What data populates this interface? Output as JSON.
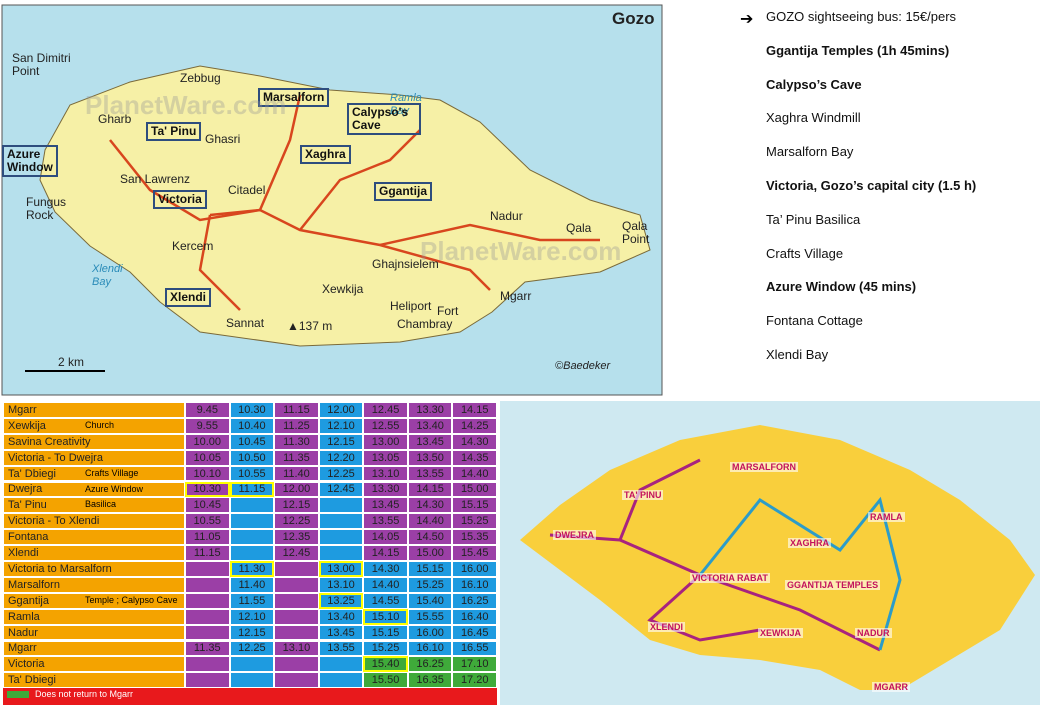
{
  "gozo_map": {
    "watermark": "PlanetWare.com",
    "labels": [
      {
        "text": "Gozo",
        "style": "title"
      },
      {
        "text": "San Dimitri Point"
      },
      {
        "text": "Zebbug"
      },
      {
        "text": "Marsalforn",
        "boxed": true
      },
      {
        "text": "Ramla Bay",
        "style": "water"
      },
      {
        "text": "Calypso's Cave",
        "boxed": true
      },
      {
        "text": "Gharb"
      },
      {
        "text": "Ta' Pinu",
        "boxed": true
      },
      {
        "text": "Ghasri"
      },
      {
        "text": "Azure Window",
        "boxed": true
      },
      {
        "text": "Xaghra",
        "boxed": true
      },
      {
        "text": "San Lawrenz"
      },
      {
        "text": "Citadel"
      },
      {
        "text": "Ggantija",
        "boxed": true
      },
      {
        "text": "Fungus Rock"
      },
      {
        "text": "Victoria",
        "boxed": true
      },
      {
        "text": "Nadur"
      },
      {
        "text": "Qala"
      },
      {
        "text": "Qala Point"
      },
      {
        "text": "Kercem"
      },
      {
        "text": "Ghajnsielem"
      },
      {
        "text": "Xlendi Bay",
        "style": "water"
      },
      {
        "text": "Xlendi",
        "boxed": true
      },
      {
        "text": "Xewkija"
      },
      {
        "text": "Mgarr"
      },
      {
        "text": "Heliport"
      },
      {
        "text": "Fort"
      },
      {
        "text": "Chambray"
      },
      {
        "text": "Sannat"
      },
      {
        "text": "▲137 m"
      },
      {
        "text": "2 km"
      },
      {
        "text": "©Baedeker",
        "style": "credit"
      }
    ]
  },
  "itinerary": [
    {
      "text": "GOZO sightseeing bus: 15€/pers",
      "bold": false
    },
    {
      "text": "Ggantija Temples (1h 45mins)",
      "bold": true
    },
    {
      "text": "Calypso’s Cave",
      "bold": true
    },
    {
      "text": "Xaghra Windmill",
      "bold": false
    },
    {
      "text": "Marsalforn Bay",
      "bold": false
    },
    {
      "text": "Victoria, Gozo’s capital city (1.5 h)",
      "bold": true
    },
    {
      "text": "Ta’ Pinu Basilica",
      "bold": false
    },
    {
      "text": "Crafts Village",
      "bold": false
    },
    {
      "text": "Azure Window (45 mins)",
      "bold": true
    },
    {
      "text": "Fontana Cottage",
      "bold": false
    },
    {
      "text": "Xlendi Bay",
      "bold": false
    }
  ],
  "timetable": {
    "name_color": "#f4a300",
    "schemes": {
      "A": [
        "#9b3fa6",
        "#1e9be0",
        "#9b3fa6",
        "#1e9be0",
        "#9b3fa6",
        "#9b3fa6",
        "#9b3fa6"
      ],
      "B": [
        "#9b3fa6",
        "#1e9be0",
        "#9b3fa6",
        "#1e9be0",
        "#1e9be0",
        "#1e9be0",
        "#1e9be0"
      ],
      "C": [
        "#9b3fa6",
        "#1e9be0",
        "#9b3fa6",
        "#1e9be0",
        "#3faa3a",
        "#3faa3a",
        "#3faa3a"
      ]
    },
    "highlight_color": "#ffff00",
    "rows": [
      {
        "stop": "Mgarr",
        "scheme": "A",
        "times": [
          "9.45",
          "10.30",
          "11.15",
          "12.00",
          "12.45",
          "13.30",
          "14.15"
        ]
      },
      {
        "stop": "Xewkija",
        "note": "Church",
        "scheme": "A",
        "times": [
          "9.55",
          "10.40",
          "11.25",
          "12.10",
          "12.55",
          "13.40",
          "14.25"
        ]
      },
      {
        "stop": "Savina Creativity",
        "scheme": "A",
        "times": [
          "10.00",
          "10.45",
          "11.30",
          "12.15",
          "13.00",
          "13.45",
          "14.30"
        ]
      },
      {
        "stop": "Victoria - To Dwejra",
        "scheme": "A",
        "times": [
          "10.05",
          "10.50",
          "11.35",
          "12.20",
          "13.05",
          "13.50",
          "14.35"
        ]
      },
      {
        "stop": "Ta' Dbiegi",
        "note": "Crafts Village",
        "scheme": "A",
        "times": [
          "10.10",
          "10.55",
          "11.40",
          "12.25",
          "13.10",
          "13.55",
          "14.40"
        ]
      },
      {
        "stop": "Dwejra",
        "note": "Azure Window",
        "scheme": "A",
        "highlight": [
          0,
          1
        ],
        "times": [
          "10.30",
          "11.15",
          "12.00",
          "12.45",
          "13.30",
          "14.15",
          "15.00"
        ]
      },
      {
        "stop": "Ta' Pinu",
        "note": "Basilica",
        "scheme": "A",
        "times": [
          "10.45",
          null,
          "12.15",
          null,
          "13.45",
          "14.30",
          "15.15"
        ]
      },
      {
        "stop": "Victoria - To Xlendi",
        "scheme": "A",
        "times": [
          "10.55",
          null,
          "12.25",
          null,
          "13.55",
          "14.40",
          "15.25"
        ]
      },
      {
        "stop": "Fontana",
        "scheme": "A",
        "times": [
          "11.05",
          null,
          "12.35",
          null,
          "14.05",
          "14.50",
          "15.35"
        ]
      },
      {
        "stop": "Xlendi",
        "scheme": "A",
        "times": [
          "11.15",
          null,
          "12.45",
          null,
          "14.15",
          "15.00",
          "15.45"
        ]
      },
      {
        "stop": "Victoria to Marsalforn",
        "scheme": "B",
        "highlight": [
          1,
          3
        ],
        "times": [
          null,
          "11.30",
          null,
          "13.00",
          "14.30",
          "15.15",
          "16.00"
        ]
      },
      {
        "stop": "Marsalforn",
        "scheme": "B",
        "times": [
          null,
          "11.40",
          null,
          "13.10",
          "14.40",
          "15.25",
          "16.10"
        ]
      },
      {
        "stop": "Ggantija",
        "note": "Temple ; Calypso Cave",
        "scheme": "B",
        "highlight": [
          3
        ],
        "times": [
          null,
          "11.55",
          null,
          "13.25",
          "14.55",
          "15.40",
          "16.25"
        ]
      },
      {
        "stop": "Ramla",
        "scheme": "B",
        "highlight": [
          4
        ],
        "times": [
          null,
          "12.10",
          null,
          "13.40",
          "15.10",
          "15.55",
          "16.40"
        ]
      },
      {
        "stop": "Nadur",
        "scheme": "B",
        "times": [
          null,
          "12.15",
          null,
          "13.45",
          "15.15",
          "16.00",
          "16.45"
        ]
      },
      {
        "stop": "Mgarr",
        "scheme": "B",
        "times": [
          "11.35",
          "12.25",
          "13.10",
          "13.55",
          "15.25",
          "16.10",
          "16.55"
        ]
      },
      {
        "stop": "Victoria",
        "scheme": "C",
        "highlight": [
          4
        ],
        "times": [
          null,
          null,
          null,
          null,
          "15.40",
          "16.25",
          "17.10"
        ]
      },
      {
        "stop": "Ta' Dbiegi",
        "scheme": "C",
        "times": [
          null,
          null,
          null,
          null,
          "15.50",
          "16.35",
          "17.20"
        ]
      }
    ],
    "legend": {
      "text": "Does not return to Mgarr",
      "color": "#3faa3a",
      "background": "#e8191c"
    }
  },
  "route_map": {
    "labels": [
      "DWEJRA",
      "TA' PINU",
      "MARSALFORN",
      "XAGHRA",
      "RAMLA",
      "VICTORIA RABAT",
      "GGANTIJA TEMPLES",
      "XLENDI",
      "XEWKIJA",
      "NADUR",
      "MGARR"
    ]
  }
}
